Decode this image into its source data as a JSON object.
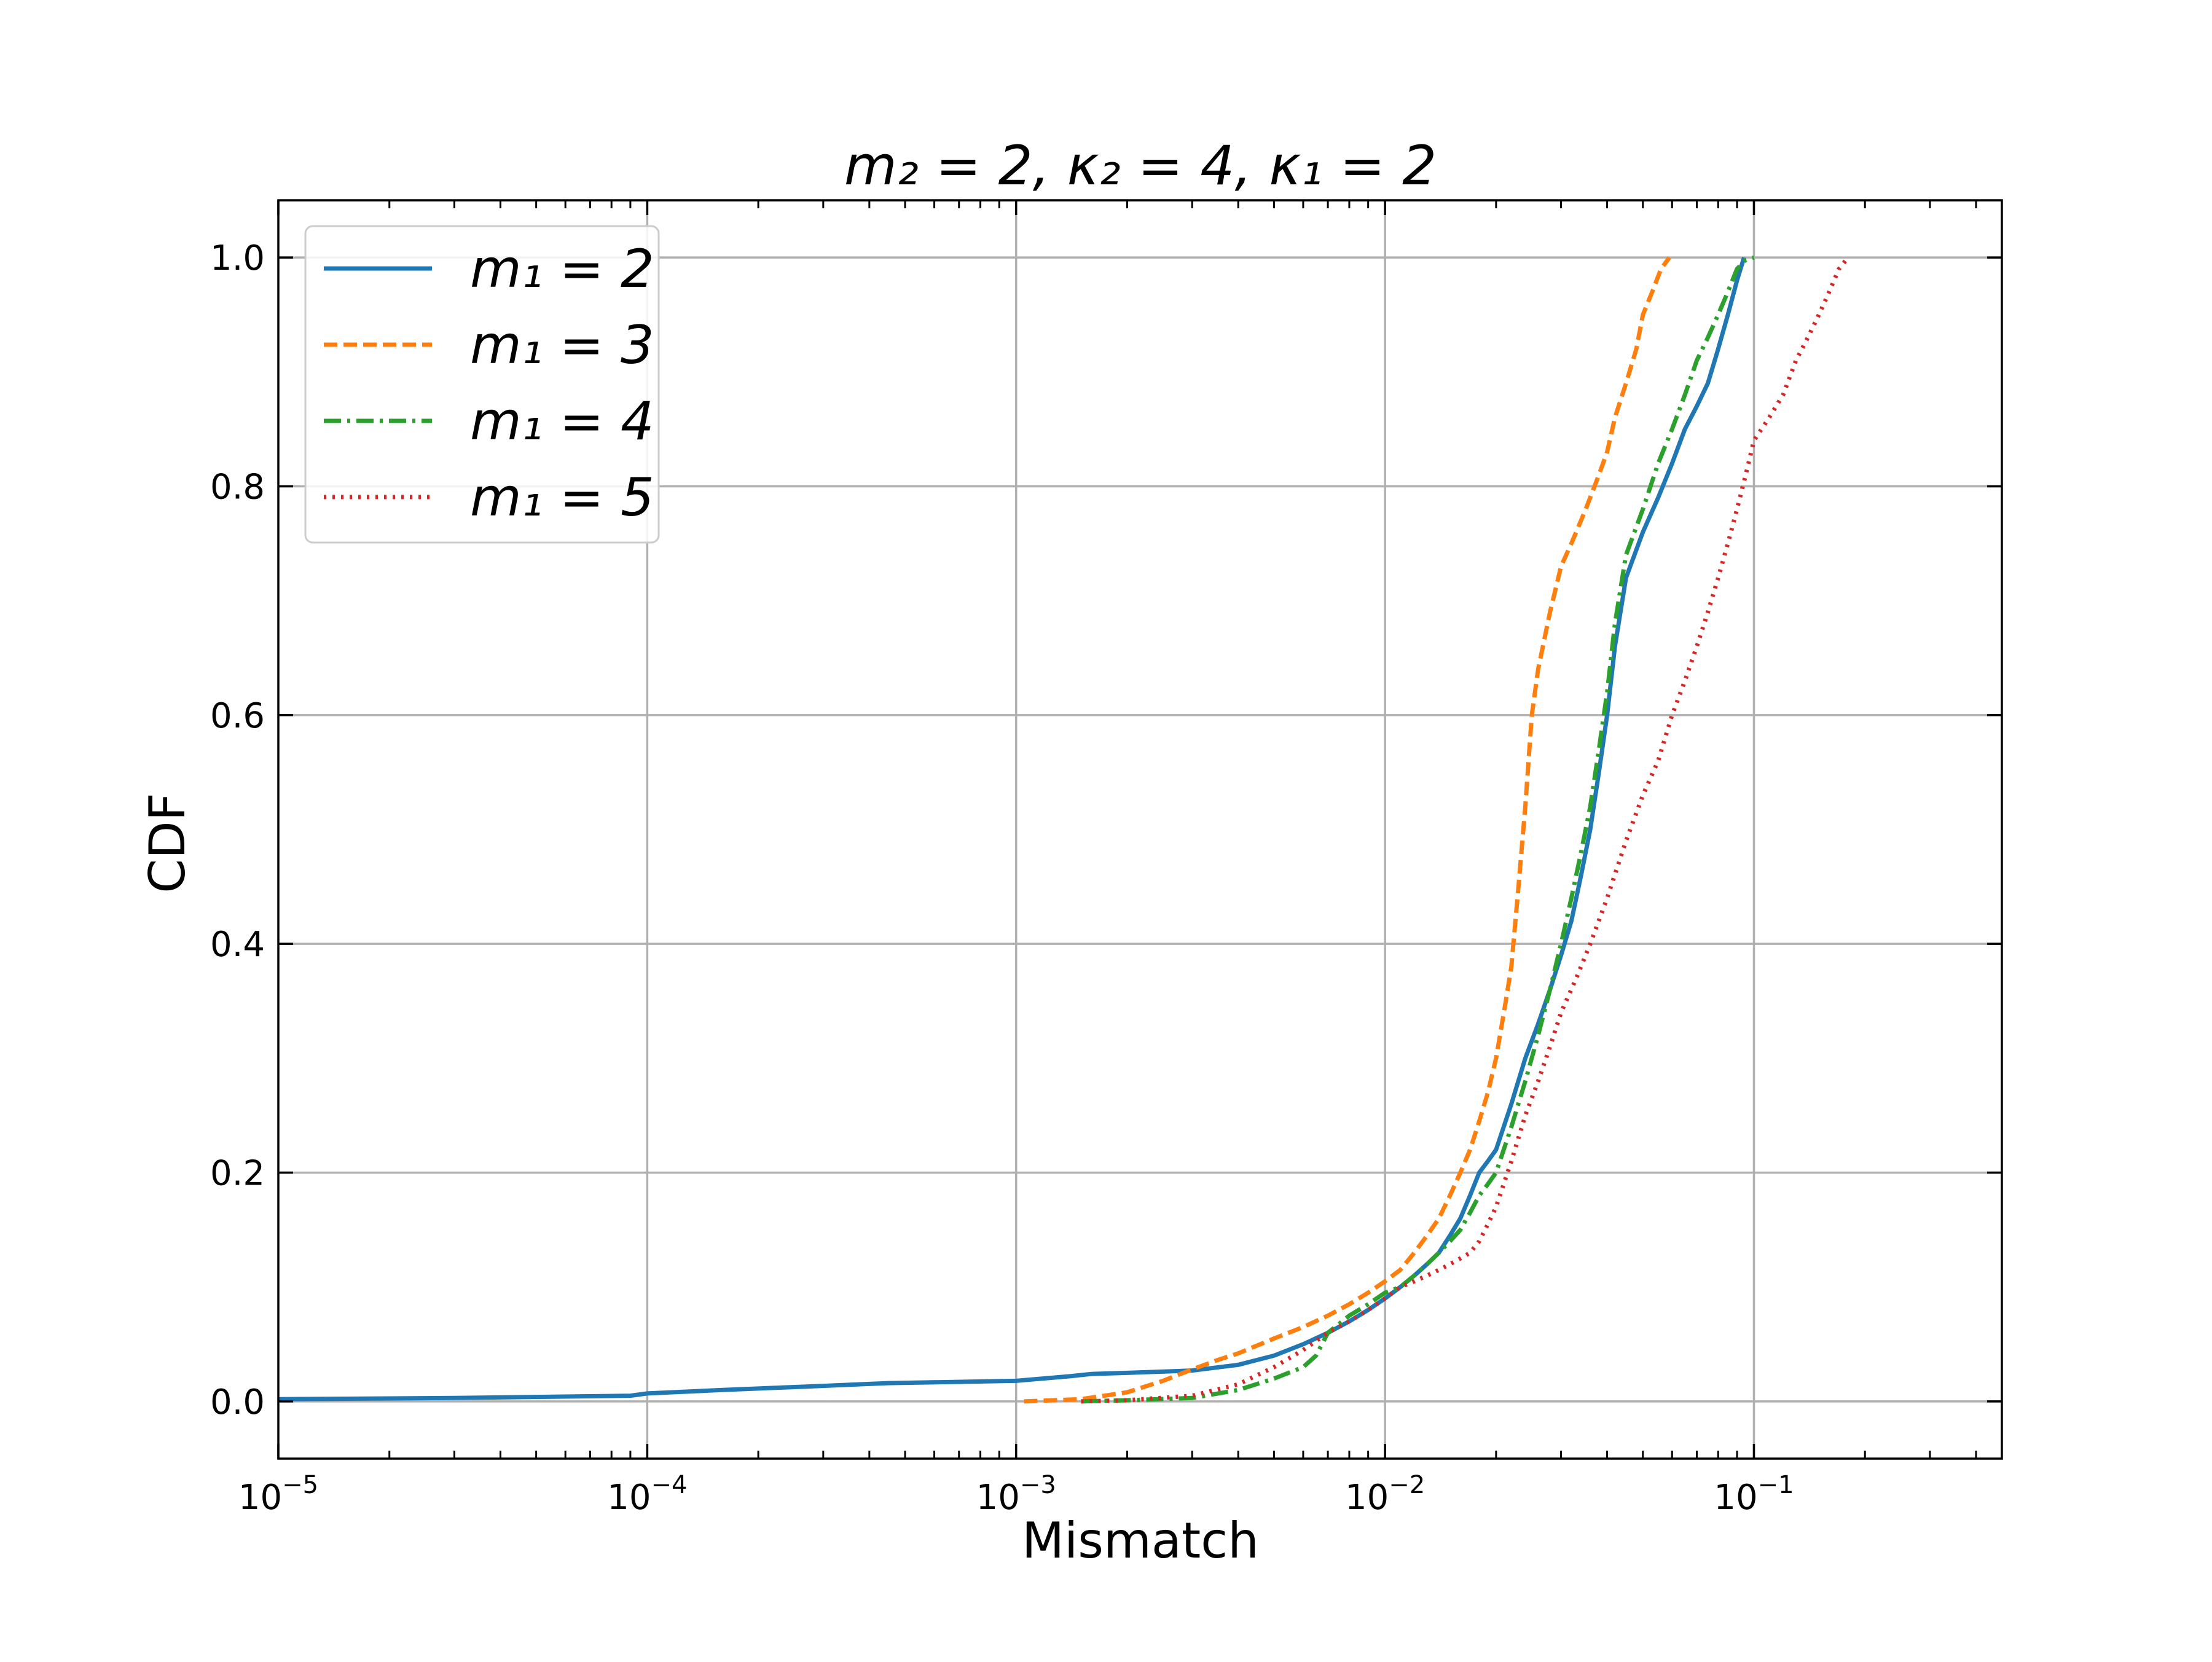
{
  "chart_data": {
    "type": "line",
    "title": "m₂ = 2, κ₂ = 4, κ₁ = 2",
    "xlabel": "Mismatch",
    "ylabel": "CDF",
    "xscale": "log",
    "xlim": [
      1e-05,
      0.47
    ],
    "ylim": [
      -0.05,
      1.05
    ],
    "grid": true,
    "legend_position": "top-left",
    "x_ticks": [
      {
        "value": 1e-05,
        "base": "10",
        "exp": "−5"
      },
      {
        "value": 0.0001,
        "base": "10",
        "exp": "−4"
      },
      {
        "value": 0.001,
        "base": "10",
        "exp": "−3"
      },
      {
        "value": 0.01,
        "base": "10",
        "exp": "−2"
      },
      {
        "value": 0.1,
        "base": "10",
        "exp": "−1"
      }
    ],
    "y_ticks": [
      {
        "value": 0.0,
        "label": "0.0"
      },
      {
        "value": 0.2,
        "label": "0.2"
      },
      {
        "value": 0.4,
        "label": "0.4"
      },
      {
        "value": 0.6,
        "label": "0.6"
      },
      {
        "value": 0.8,
        "label": "0.8"
      },
      {
        "value": 1.0,
        "label": "1.0"
      }
    ],
    "series": [
      {
        "name": "m₁ = 2",
        "color": "#1f77b4",
        "style": "solid",
        "x": [
          1e-05,
          3e-05,
          9e-05,
          0.0001,
          0.00016,
          0.00027,
          0.00045,
          0.001,
          0.0014,
          0.0016,
          0.002,
          0.003,
          0.004,
          0.005,
          0.006,
          0.007,
          0.008,
          0.009,
          0.01,
          0.011,
          0.012,
          0.013,
          0.014,
          0.015,
          0.016,
          0.017,
          0.018,
          0.019,
          0.02,
          0.022,
          0.024,
          0.026,
          0.028,
          0.03,
          0.032,
          0.034,
          0.036,
          0.038,
          0.04,
          0.042,
          0.045,
          0.05,
          0.055,
          0.06,
          0.065,
          0.07,
          0.075,
          0.08,
          0.085,
          0.09,
          0.094
        ],
        "y": [
          0.002,
          0.003,
          0.005,
          0.007,
          0.01,
          0.013,
          0.016,
          0.018,
          0.022,
          0.024,
          0.025,
          0.027,
          0.032,
          0.04,
          0.05,
          0.06,
          0.07,
          0.08,
          0.09,
          0.1,
          0.11,
          0.12,
          0.13,
          0.145,
          0.16,
          0.18,
          0.2,
          0.21,
          0.22,
          0.26,
          0.3,
          0.33,
          0.36,
          0.39,
          0.42,
          0.46,
          0.5,
          0.55,
          0.6,
          0.66,
          0.72,
          0.76,
          0.79,
          0.82,
          0.85,
          0.87,
          0.89,
          0.92,
          0.95,
          0.98,
          1.0
        ]
      },
      {
        "name": "m₁ = 3",
        "color": "#ff7f0e",
        "style": "dashed",
        "x": [
          0.00105,
          0.0015,
          0.002,
          0.0025,
          0.003,
          0.0035,
          0.004,
          0.005,
          0.006,
          0.007,
          0.008,
          0.009,
          0.01,
          0.011,
          0.012,
          0.013,
          0.014,
          0.015,
          0.016,
          0.017,
          0.018,
          0.019,
          0.02,
          0.021,
          0.022,
          0.023,
          0.024,
          0.025,
          0.026,
          0.028,
          0.03,
          0.032,
          0.035,
          0.038,
          0.04,
          0.042,
          0.045,
          0.048,
          0.05,
          0.053,
          0.056,
          0.059
        ],
        "y": [
          0.0,
          0.002,
          0.008,
          0.018,
          0.028,
          0.036,
          0.042,
          0.055,
          0.065,
          0.075,
          0.085,
          0.095,
          0.105,
          0.115,
          0.13,
          0.145,
          0.16,
          0.18,
          0.2,
          0.22,
          0.245,
          0.27,
          0.3,
          0.34,
          0.38,
          0.45,
          0.52,
          0.6,
          0.64,
          0.69,
          0.73,
          0.75,
          0.78,
          0.81,
          0.83,
          0.86,
          0.89,
          0.92,
          0.95,
          0.97,
          0.99,
          1.0
        ]
      },
      {
        "name": "m₁ = 4",
        "color": "#2ca02c",
        "style": "dashdot",
        "x": [
          0.0015,
          0.002,
          0.003,
          0.004,
          0.005,
          0.006,
          0.0065,
          0.007,
          0.008,
          0.009,
          0.01,
          0.011,
          0.012,
          0.013,
          0.014,
          0.015,
          0.016,
          0.017,
          0.018,
          0.019,
          0.02,
          0.022,
          0.024,
          0.026,
          0.028,
          0.03,
          0.032,
          0.034,
          0.036,
          0.038,
          0.04,
          0.042,
          0.045,
          0.05,
          0.055,
          0.06,
          0.065,
          0.07,
          0.075,
          0.08,
          0.085,
          0.09,
          0.095,
          0.1
        ],
        "y": [
          0.0,
          0.001,
          0.003,
          0.01,
          0.02,
          0.03,
          0.04,
          0.06,
          0.075,
          0.085,
          0.095,
          0.1,
          0.11,
          0.12,
          0.13,
          0.14,
          0.15,
          0.165,
          0.18,
          0.19,
          0.2,
          0.24,
          0.28,
          0.32,
          0.36,
          0.4,
          0.44,
          0.48,
          0.52,
          0.57,
          0.62,
          0.68,
          0.74,
          0.78,
          0.82,
          0.85,
          0.88,
          0.91,
          0.93,
          0.95,
          0.97,
          0.99,
          0.998,
          1.0
        ]
      },
      {
        "name": "m₁ = 5",
        "color": "#d62728",
        "style": "dotted",
        "x": [
          0.0015,
          0.002,
          0.003,
          0.004,
          0.005,
          0.006,
          0.007,
          0.008,
          0.009,
          0.01,
          0.011,
          0.012,
          0.013,
          0.014,
          0.015,
          0.016,
          0.017,
          0.018,
          0.019,
          0.02,
          0.022,
          0.024,
          0.026,
          0.028,
          0.03,
          0.033,
          0.036,
          0.04,
          0.045,
          0.05,
          0.055,
          0.06,
          0.065,
          0.07,
          0.075,
          0.08,
          0.085,
          0.09,
          0.095,
          0.1,
          0.11,
          0.12,
          0.13,
          0.14,
          0.15,
          0.16,
          0.17,
          0.18
        ],
        "y": [
          0.0,
          0.001,
          0.005,
          0.015,
          0.03,
          0.045,
          0.06,
          0.07,
          0.08,
          0.09,
          0.1,
          0.105,
          0.11,
          0.115,
          0.12,
          0.125,
          0.13,
          0.14,
          0.155,
          0.17,
          0.21,
          0.25,
          0.28,
          0.31,
          0.34,
          0.37,
          0.4,
          0.44,
          0.49,
          0.53,
          0.56,
          0.6,
          0.63,
          0.66,
          0.69,
          0.72,
          0.75,
          0.78,
          0.81,
          0.84,
          0.86,
          0.88,
          0.91,
          0.93,
          0.95,
          0.97,
          0.99,
          1.0
        ]
      }
    ]
  }
}
